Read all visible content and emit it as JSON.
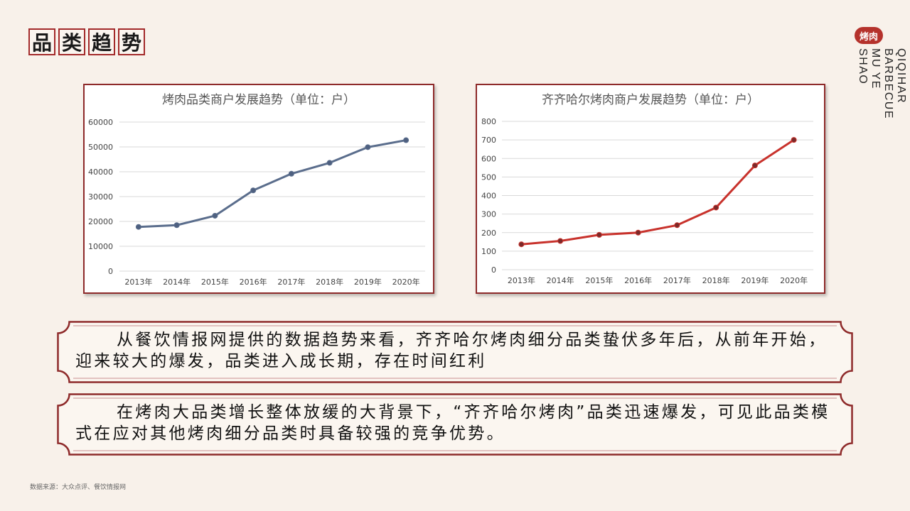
{
  "header": {
    "title_chars": [
      "品",
      "类",
      "趋",
      "势"
    ]
  },
  "brand": {
    "badge": "烤肉",
    "line1": "QIQIHAR BARBECUE",
    "line2": "MU YE SHAO"
  },
  "chart_data": [
    {
      "type": "line",
      "title": "烤肉品类商户发展趋势（单位：户）",
      "categories": [
        "2013年",
        "2014年",
        "2015年",
        "2016年",
        "2017年",
        "2018年",
        "2019年",
        "2020年"
      ],
      "series": [
        {
          "values": [
            17800,
            18500,
            22300,
            32500,
            39200,
            43600,
            49900,
            52700
          ]
        }
      ],
      "ylim": [
        0,
        60000
      ],
      "yticks": [
        "0",
        "10000",
        "20000",
        "30000",
        "40000",
        "50000",
        "60000"
      ],
      "color": "#5a6d8c"
    },
    {
      "type": "line",
      "title": "齐齐哈尔烤肉商户发展趋势（单位：户）",
      "categories": [
        "2013年",
        "2014年",
        "2015年",
        "2016年",
        "2017年",
        "2018年",
        "2019年",
        "2020年"
      ],
      "series": [
        {
          "values": [
            137,
            155,
            188,
            200,
            240,
            335,
            562,
            700
          ]
        }
      ],
      "ylim": [
        0,
        800
      ],
      "yticks": [
        "0",
        "100",
        "200",
        "300",
        "400",
        "500",
        "600",
        "700",
        "800"
      ],
      "color": "#c8322c"
    }
  ],
  "text_boxes": [
    "从餐饮情报网提供的数据趋势来看，齐齐哈尔烤肉细分品类蛰伏多年后，从前年开始，迎来较大的爆发，品类进入成长期，存在时间红利",
    "在烤肉大品类增长整体放缓的大背景下，“齐齐哈尔烤肉”品类迅速爆发，可见此品类模式在应对其他烤肉细分品类时具备较强的竞争优势。"
  ],
  "footer": {
    "source": "数据来源：大众点评、餐饮情报网"
  }
}
